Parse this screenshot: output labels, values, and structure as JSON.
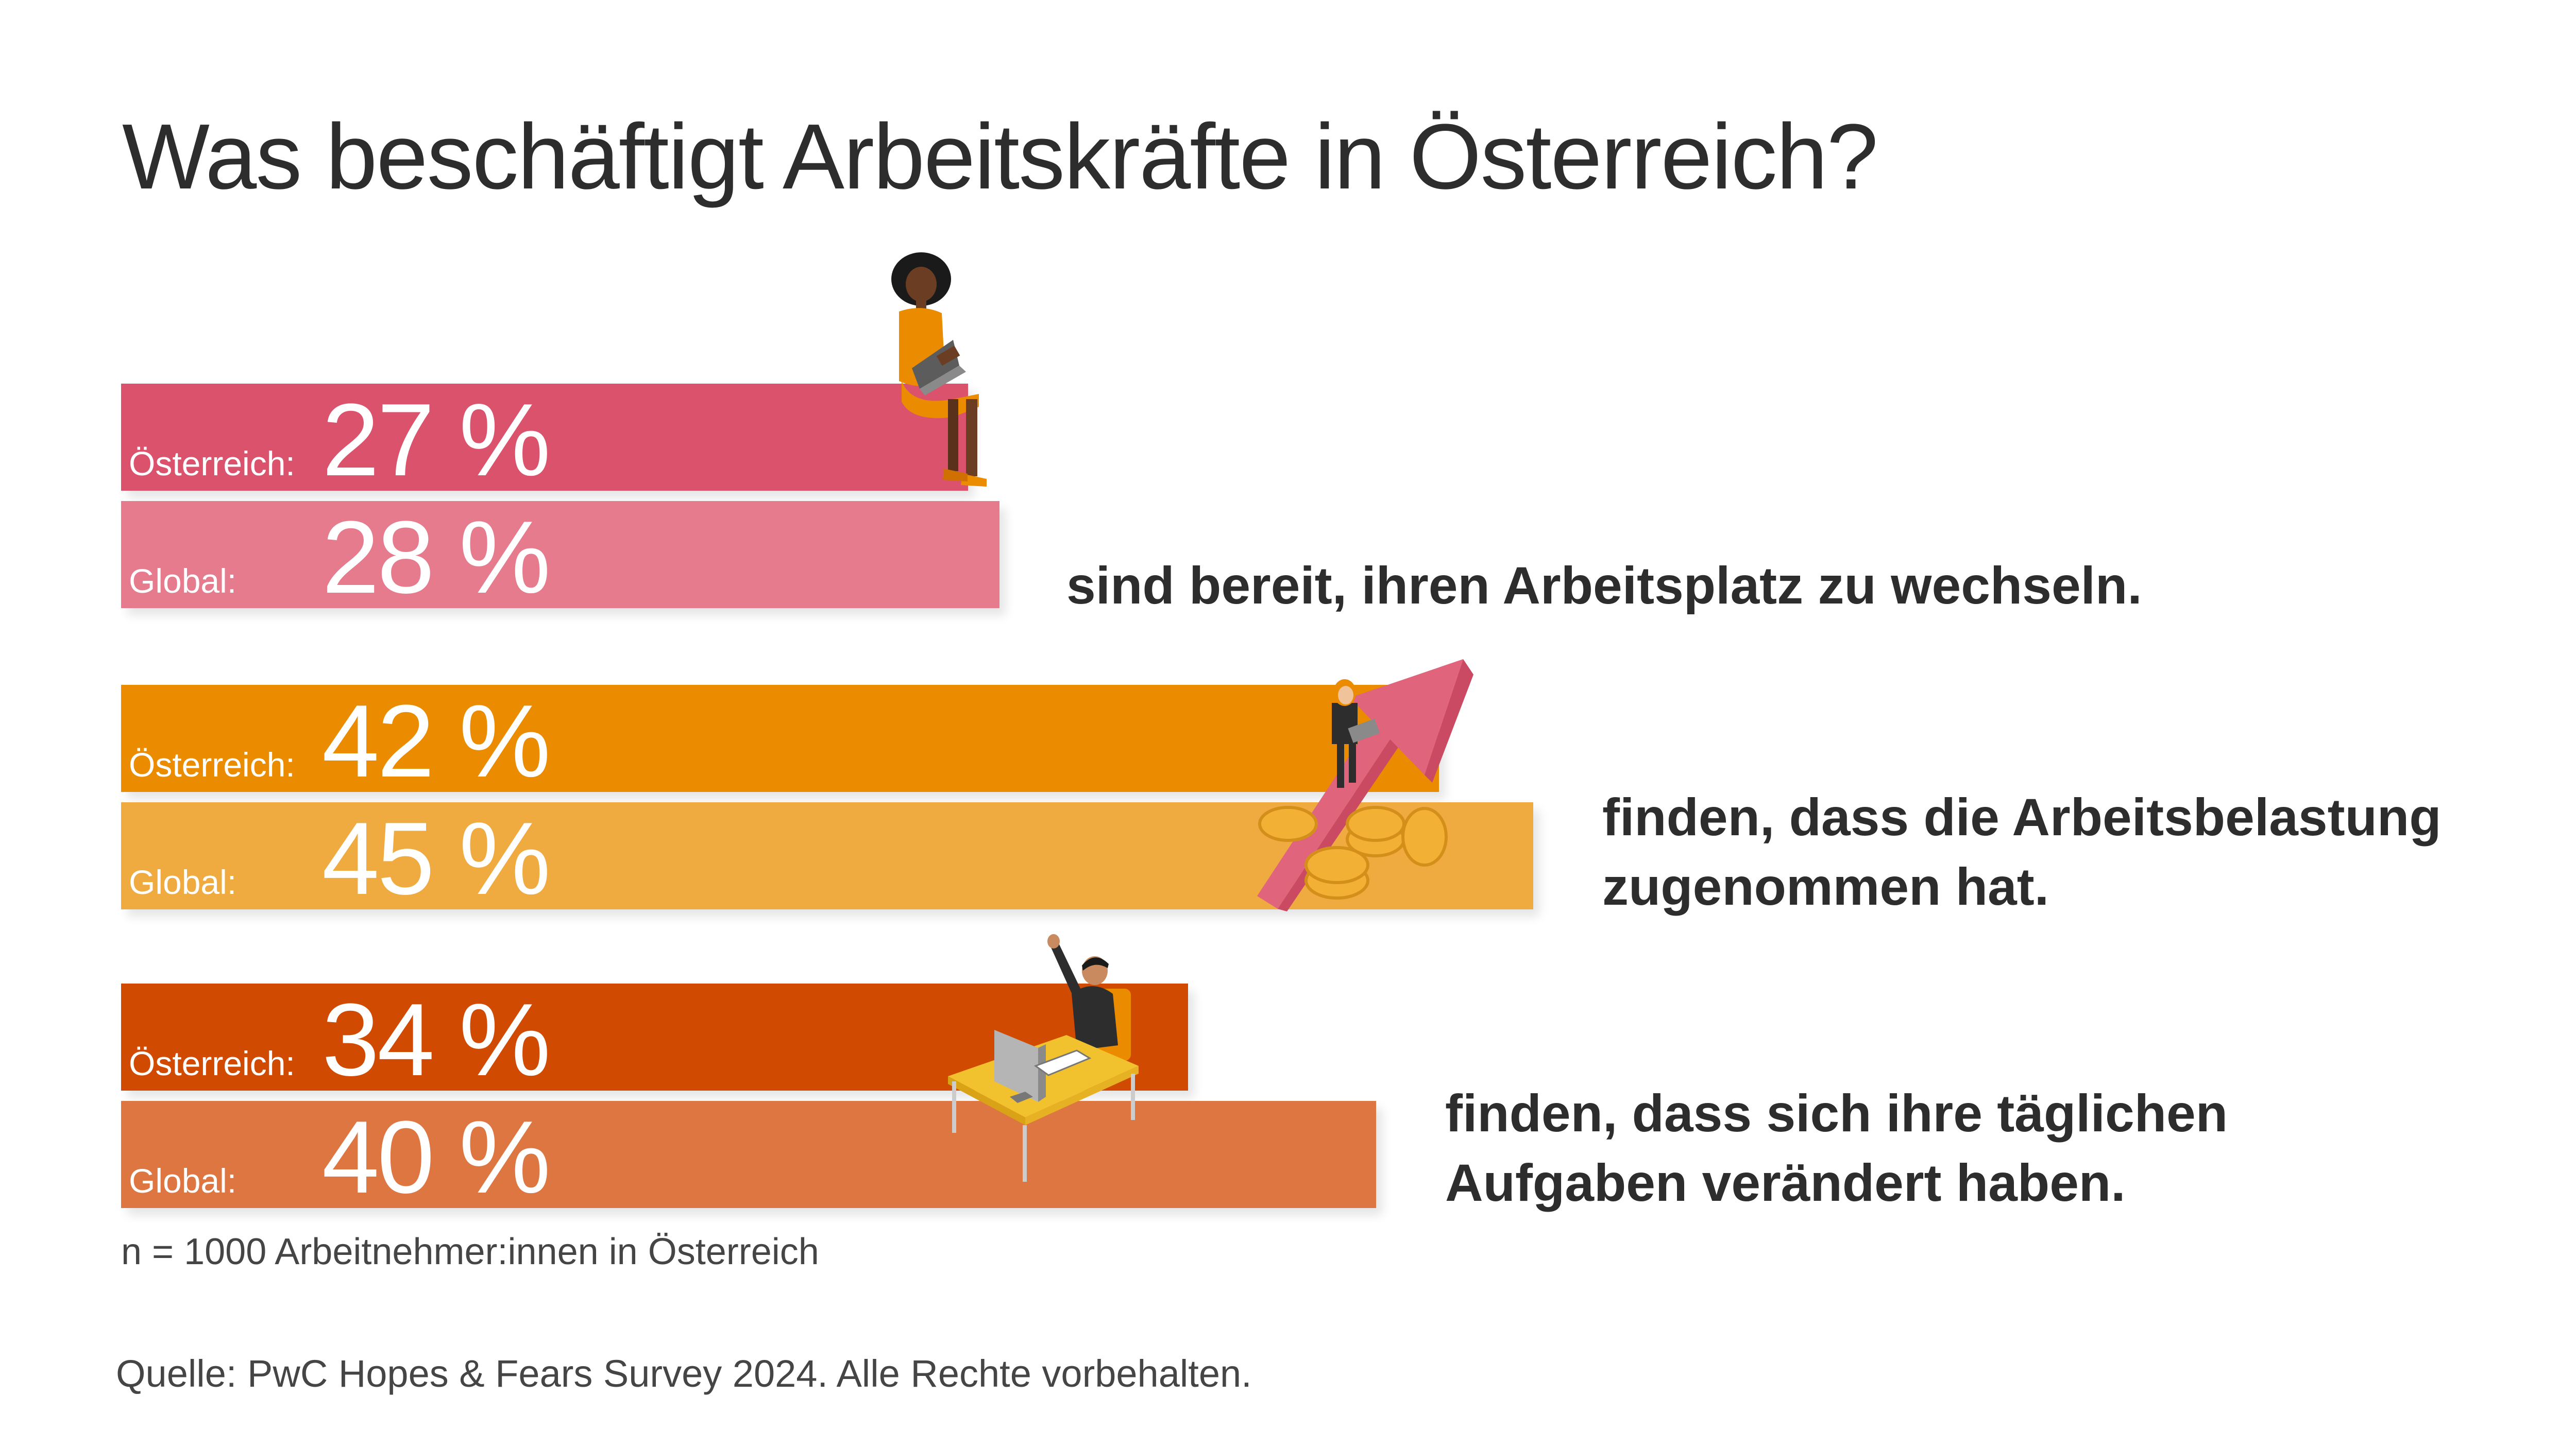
{
  "title": "Was beschäftigt Arbeitskräfte in Österreich?",
  "chart_data": {
    "type": "bar",
    "orientation": "horizontal",
    "groups": [
      {
        "description": [
          "sind bereit, ihren Arbeitsplatz zu wechseln."
        ],
        "bars": [
          {
            "label": "Österreich:",
            "value": 27,
            "display": "27 %",
            "color": "#db526d"
          },
          {
            "label": "Global:",
            "value": 28,
            "display": "28 %",
            "color": "#e57b8d"
          }
        ]
      },
      {
        "description": [
          "finden, dass die Arbeitsbelastung",
          "zugenommen hat."
        ],
        "bars": [
          {
            "label": "Österreich:",
            "value": 42,
            "display": "42 %",
            "color": "#eb8c00"
          },
          {
            "label": "Global:",
            "value": 45,
            "display": "45 %",
            "color": "#efaa40"
          }
        ]
      },
      {
        "description": [
          "finden, dass sich ihre täglichen",
          "Aufgaben verändert haben."
        ],
        "bars": [
          {
            "label": "Österreich:",
            "value": 34,
            "display": "34 %",
            "color": "#d04a02"
          },
          {
            "label": "Global:",
            "value": 40,
            "display": "40 %",
            "color": "#dd7641"
          }
        ]
      }
    ],
    "unit": "%"
  },
  "note": "n = 1000 Arbeitnehmer:innen in Österreich",
  "source": "Quelle: PwC Hopes & Fears Survey 2024. Alle Rechte vorbehalten."
}
